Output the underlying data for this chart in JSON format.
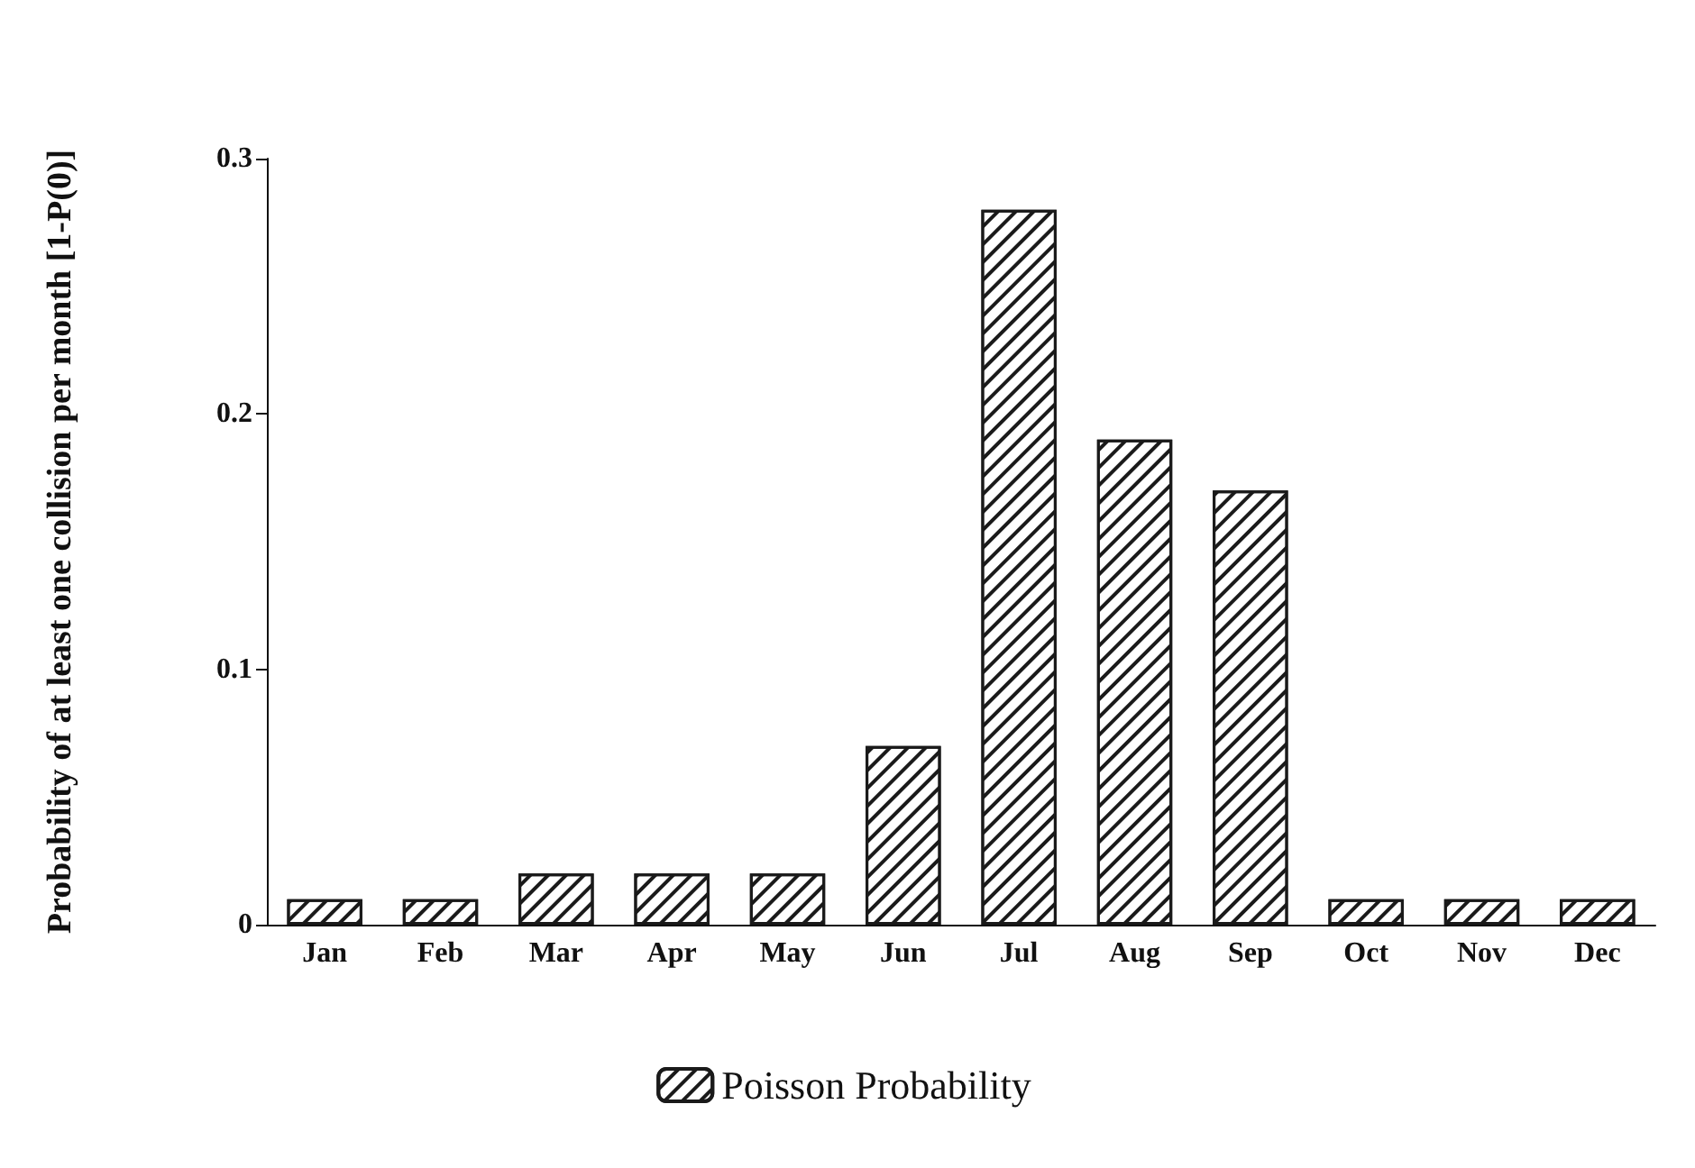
{
  "chart_data": {
    "type": "bar",
    "ylabel": "Probability of at least one collision per month [1-P(0)]",
    "categories": [
      "Jan",
      "Feb",
      "Mar",
      "Apr",
      "May",
      "Jun",
      "Jul",
      "Aug",
      "Sep",
      "Oct",
      "Nov",
      "Dec"
    ],
    "series": [
      {
        "name": "Poisson Probability",
        "color": "#1a1a1a",
        "values": [
          0.01,
          0.01,
          0.02,
          0.02,
          0.02,
          0.07,
          0.28,
          0.19,
          0.17,
          0.01,
          0.01,
          0.01
        ]
      }
    ],
    "ylim": [
      0,
      0.3
    ],
    "yticks": [
      0,
      0.1,
      0.2,
      0.3
    ],
    "grid": false,
    "legend": "bottom"
  }
}
